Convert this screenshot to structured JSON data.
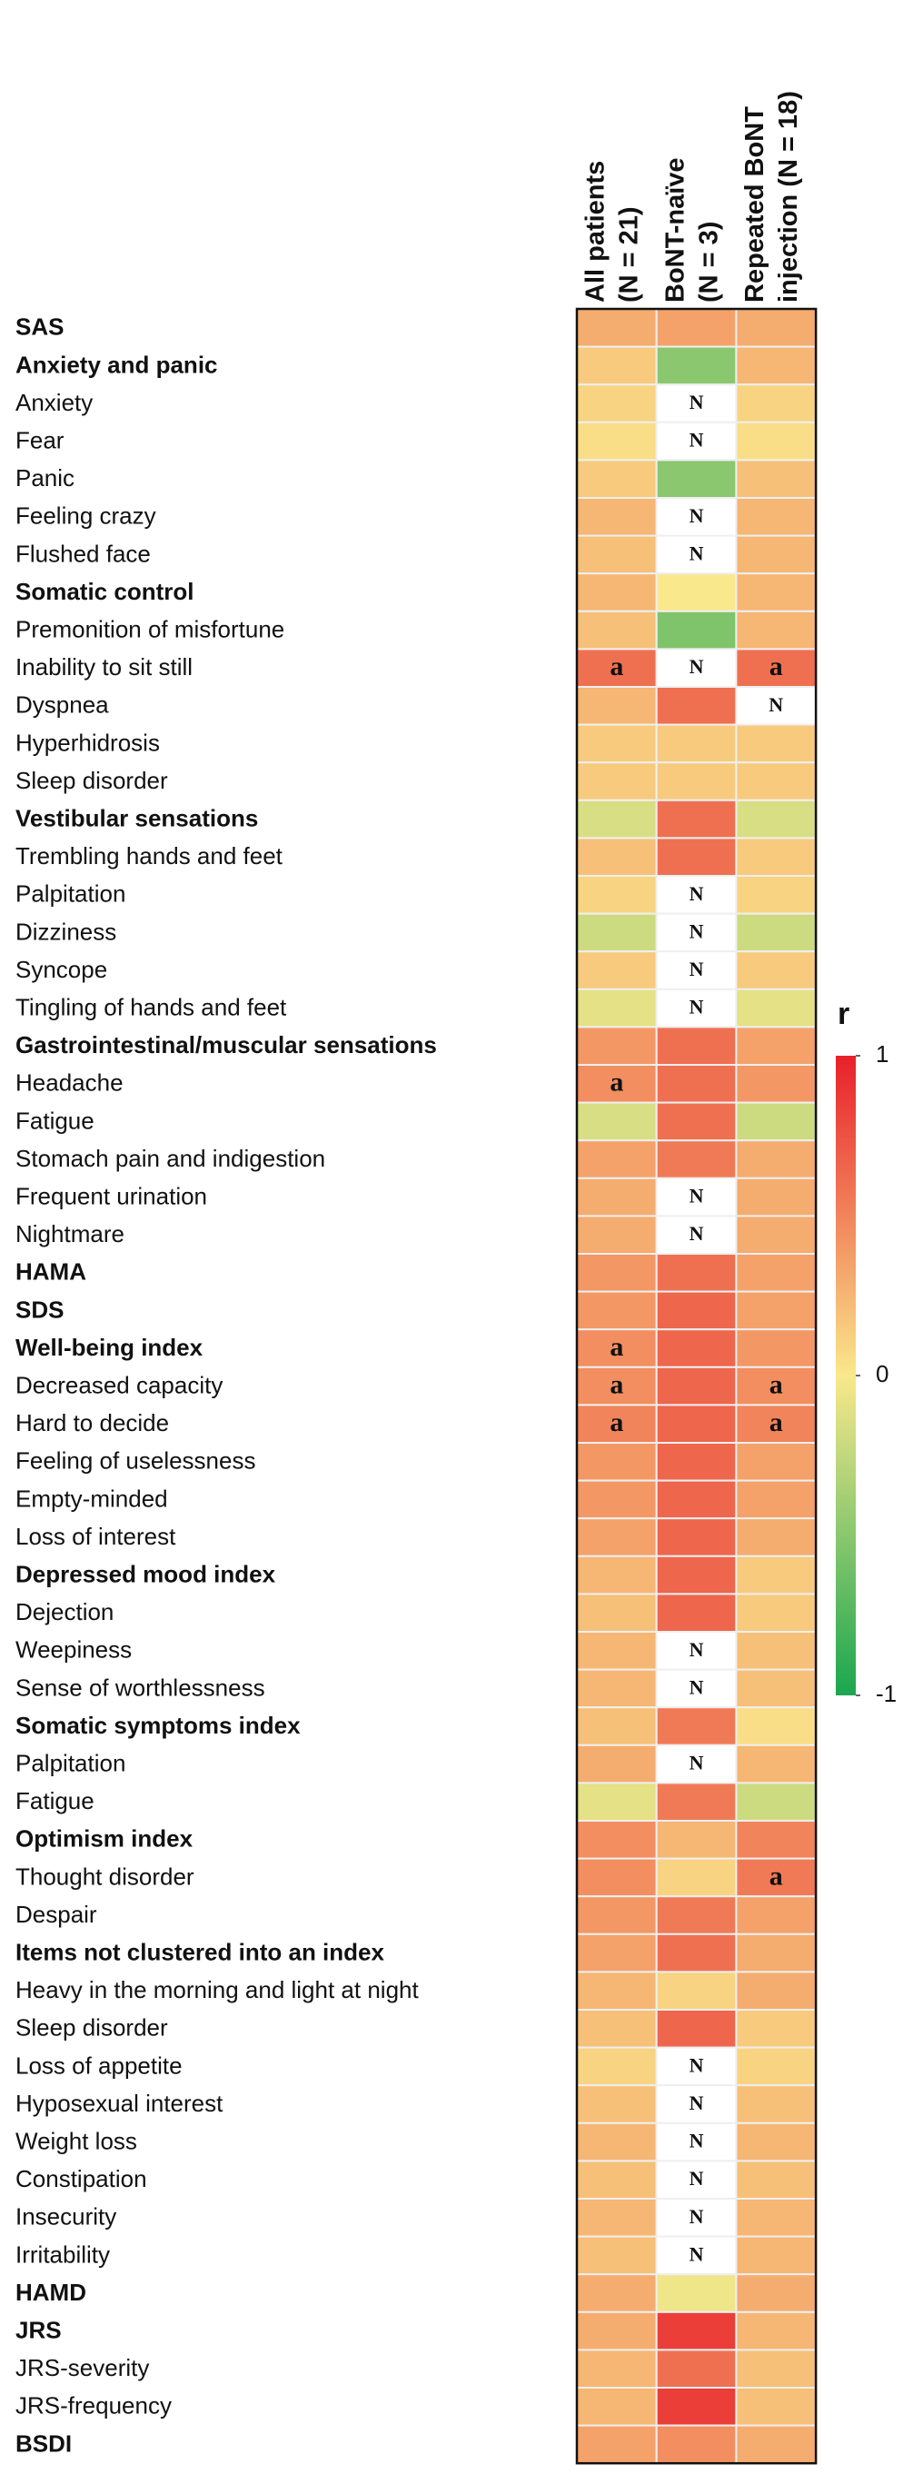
{
  "chart_data": {
    "type": "heatmap",
    "columns": [
      [
        "All patients",
        "(N = 21)"
      ],
      [
        "BoNT-naïve",
        "(N = 3)"
      ],
      [
        "Repeated BoNT",
        "injection (N = 18)"
      ]
    ],
    "categories": [
      "SAS",
      "Anxiety and panic",
      "Anxiety",
      "Fear",
      "Panic",
      "Feeling crazy",
      "Flushed face",
      "Somatic control",
      "Premonition of misfortune",
      "Inability to sit still",
      "Dyspnea",
      "Hyperhidrosis",
      "Sleep disorder",
      "Vestibular sensations",
      "Trembling hands and feet",
      "Palpitation",
      "Dizziness",
      "Syncope",
      "Tingling of hands and feet",
      "Gastrointestinal/muscular sensations",
      "Headache",
      "Fatigue",
      "Stomach pain and indigestion",
      "Frequent urination",
      "Nightmare",
      "HAMA",
      "SDS",
      "Well-being index",
      "Decreased capacity",
      "Hard to decide",
      "Feeling of uselessness",
      "Empty-minded",
      "Loss of interest",
      "Depressed mood index",
      "Dejection",
      "Weepiness",
      "Sense of worthlessness",
      "Somatic symptoms index",
      "Palpitation",
      "Fatigue",
      "Optimism index",
      "Thought disorder",
      "Despair",
      "Items not clustered into an index",
      "Heavy in the morning and light at night",
      "Sleep disorder",
      "Loss of appetite",
      "Hyposexual interest",
      "Weight loss",
      "Constipation",
      "Insecurity",
      "Irritability",
      "HAMD",
      "JRS",
      "JRS-severity",
      "JRS-frequency",
      "BSDI"
    ],
    "bold": [
      true,
      true,
      false,
      false,
      false,
      false,
      false,
      true,
      false,
      false,
      false,
      false,
      false,
      true,
      false,
      false,
      false,
      false,
      false,
      true,
      false,
      false,
      false,
      false,
      false,
      true,
      true,
      true,
      false,
      false,
      false,
      false,
      false,
      true,
      false,
      false,
      false,
      true,
      false,
      false,
      true,
      false,
      false,
      true,
      false,
      false,
      false,
      false,
      false,
      false,
      false,
      false,
      true,
      true,
      false,
      false,
      true
    ],
    "values": [
      [
        0.3,
        0.35,
        0.3
      ],
      [
        0.15,
        -0.5,
        0.25
      ],
      [
        0.1,
        null,
        0.1
      ],
      [
        0.05,
        null,
        0.05
      ],
      [
        0.15,
        -0.5,
        0.2
      ],
      [
        0.25,
        null,
        0.25
      ],
      [
        0.2,
        null,
        0.25
      ],
      [
        0.25,
        0.0,
        0.25
      ],
      [
        0.2,
        -0.55,
        0.25
      ],
      [
        0.6,
        null,
        0.6
      ],
      [
        0.25,
        0.6,
        null
      ],
      [
        0.15,
        0.15,
        0.15
      ],
      [
        0.15,
        0.15,
        0.15
      ],
      [
        -0.15,
        0.6,
        -0.15
      ],
      [
        0.2,
        0.6,
        0.15
      ],
      [
        0.1,
        null,
        0.1
      ],
      [
        -0.2,
        null,
        -0.2
      ],
      [
        0.15,
        null,
        0.15
      ],
      [
        -0.1,
        null,
        -0.1
      ],
      [
        0.4,
        0.6,
        0.35
      ],
      [
        0.45,
        0.6,
        0.4
      ],
      [
        -0.15,
        0.6,
        -0.2
      ],
      [
        0.35,
        0.55,
        0.3
      ],
      [
        0.3,
        null,
        0.3
      ],
      [
        0.3,
        null,
        0.3
      ],
      [
        0.4,
        0.6,
        0.35
      ],
      [
        0.4,
        0.65,
        0.35
      ],
      [
        0.45,
        0.65,
        0.4
      ],
      [
        0.45,
        0.65,
        0.45
      ],
      [
        0.5,
        0.65,
        0.5
      ],
      [
        0.4,
        0.65,
        0.35
      ],
      [
        0.4,
        0.65,
        0.35
      ],
      [
        0.35,
        0.65,
        0.3
      ],
      [
        0.25,
        0.65,
        0.15
      ],
      [
        0.2,
        0.65,
        0.15
      ],
      [
        0.25,
        null,
        0.2
      ],
      [
        0.25,
        null,
        0.2
      ],
      [
        0.2,
        0.55,
        0.05
      ],
      [
        0.3,
        null,
        0.25
      ],
      [
        -0.1,
        0.55,
        -0.2
      ],
      [
        0.45,
        0.25,
        0.5
      ],
      [
        0.45,
        0.1,
        0.55
      ],
      [
        0.4,
        0.55,
        0.35
      ],
      [
        0.35,
        0.6,
        0.3
      ],
      [
        0.25,
        0.1,
        0.3
      ],
      [
        0.2,
        0.65,
        0.15
      ],
      [
        0.1,
        null,
        0.1
      ],
      [
        0.2,
        null,
        0.2
      ],
      [
        0.25,
        null,
        0.25
      ],
      [
        0.2,
        null,
        0.2
      ],
      [
        0.25,
        null,
        0.25
      ],
      [
        0.2,
        null,
        0.25
      ],
      [
        0.3,
        -0.05,
        0.3
      ],
      [
        0.3,
        0.85,
        0.25
      ],
      [
        0.25,
        0.6,
        0.2
      ],
      [
        0.25,
        0.85,
        0.2
      ],
      [
        0.35,
        0.45,
        0.3
      ]
    ],
    "cell_labels": [
      [
        null,
        null,
        null
      ],
      [
        null,
        null,
        null
      ],
      [
        null,
        "N",
        null
      ],
      [
        null,
        "N",
        null
      ],
      [
        null,
        null,
        null
      ],
      [
        null,
        "N",
        null
      ],
      [
        null,
        "N",
        null
      ],
      [
        null,
        null,
        null
      ],
      [
        null,
        null,
        null
      ],
      [
        "a",
        "N",
        "a"
      ],
      [
        null,
        null,
        "N"
      ],
      [
        null,
        null,
        null
      ],
      [
        null,
        null,
        null
      ],
      [
        null,
        null,
        null
      ],
      [
        null,
        null,
        null
      ],
      [
        null,
        "N",
        null
      ],
      [
        null,
        "N",
        null
      ],
      [
        null,
        "N",
        null
      ],
      [
        null,
        "N",
        null
      ],
      [
        null,
        null,
        null
      ],
      [
        "a",
        null,
        null
      ],
      [
        null,
        null,
        null
      ],
      [
        null,
        null,
        null
      ],
      [
        null,
        "N",
        null
      ],
      [
        null,
        "N",
        null
      ],
      [
        null,
        null,
        null
      ],
      [
        null,
        null,
        null
      ],
      [
        "a",
        null,
        null
      ],
      [
        "a",
        null,
        "a"
      ],
      [
        "a",
        null,
        "a"
      ],
      [
        null,
        null,
        null
      ],
      [
        null,
        null,
        null
      ],
      [
        null,
        null,
        null
      ],
      [
        null,
        null,
        null
      ],
      [
        null,
        null,
        null
      ],
      [
        null,
        "N",
        null
      ],
      [
        null,
        "N",
        null
      ],
      [
        null,
        null,
        null
      ],
      [
        null,
        "N",
        null
      ],
      [
        null,
        null,
        null
      ],
      [
        null,
        null,
        null
      ],
      [
        null,
        null,
        "a"
      ],
      [
        null,
        null,
        null
      ],
      [
        null,
        null,
        null
      ],
      [
        null,
        null,
        null
      ],
      [
        null,
        null,
        null
      ],
      [
        null,
        "N",
        null
      ],
      [
        null,
        "N",
        null
      ],
      [
        null,
        "N",
        null
      ],
      [
        null,
        "N",
        null
      ],
      [
        null,
        "N",
        null
      ],
      [
        null,
        "N",
        null
      ],
      [
        null,
        null,
        null
      ],
      [
        null,
        null,
        null
      ],
      [
        null,
        null,
        null
      ],
      [
        null,
        null,
        null
      ],
      [
        null,
        null,
        null
      ]
    ],
    "colors": [
      "#1aa64f",
      "#fae88c",
      "#e8202a"
    ],
    "colorbar_title": "r",
    "clim": [
      -1,
      1
    ],
    "cticks": [
      1,
      0,
      -1
    ]
  }
}
